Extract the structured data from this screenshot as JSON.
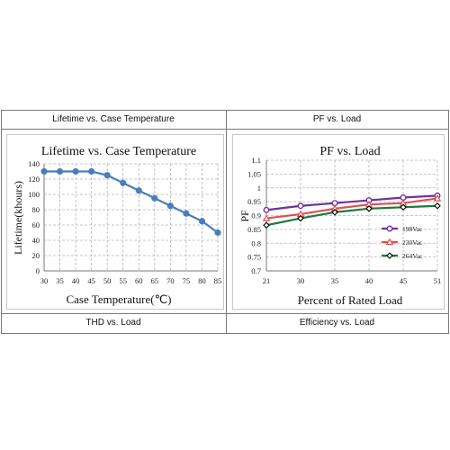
{
  "table": {
    "headers": [
      "Lifetime vs. Case Temperature",
      "PF vs. Load",
      "THD vs. Load",
      "Efficiency vs. Load"
    ]
  },
  "chart_data": [
    {
      "type": "line",
      "title": "Lifetime vs. Case Temperature",
      "xlabel": "Case Temperature(℃)",
      "ylabel": "Lifetime(khours)",
      "x": [
        30,
        35,
        40,
        45,
        50,
        55,
        60,
        65,
        70,
        75,
        80,
        85
      ],
      "series": [
        {
          "name": "",
          "color": "#4a7ebb",
          "marker": "filled-circle",
          "values": [
            130,
            130,
            130,
            130,
            125,
            115,
            105,
            95,
            85,
            75,
            65,
            50
          ]
        }
      ],
      "xlim": [
        30,
        85
      ],
      "ylim": [
        0,
        140
      ],
      "yticks": [
        0,
        20,
        40,
        60,
        80,
        100,
        120,
        140
      ],
      "grid": true,
      "legend": "none"
    },
    {
      "type": "line",
      "title": "PF vs. Load",
      "xlabel": "Percent of Rated Load",
      "ylabel": "PF",
      "categories": [
        "21",
        "30",
        "35",
        "40",
        "45",
        "51"
      ],
      "series": [
        {
          "name": "198Vac",
          "color": "#7030a0",
          "marker": "open-circle",
          "values": [
            0.92,
            0.935,
            0.945,
            0.955,
            0.965,
            0.972
          ]
        },
        {
          "name": "230Vac",
          "color": "#e05050",
          "marker": "open-triangle",
          "values": [
            0.89,
            0.905,
            0.925,
            0.94,
            0.945,
            0.962
          ]
        },
        {
          "name": "264Vac",
          "color": "#1e7a3c",
          "marker": "open-diamond",
          "values": [
            0.865,
            0.89,
            0.912,
            0.925,
            0.93,
            0.935
          ]
        }
      ],
      "ylim": [
        0.7,
        1.1
      ],
      "yticks": [
        "0.7",
        "0.75",
        "0.8",
        "0.85",
        "0.9",
        "0.95",
        "1",
        "1.05",
        "1.1"
      ],
      "grid": true,
      "legend": "right"
    }
  ]
}
